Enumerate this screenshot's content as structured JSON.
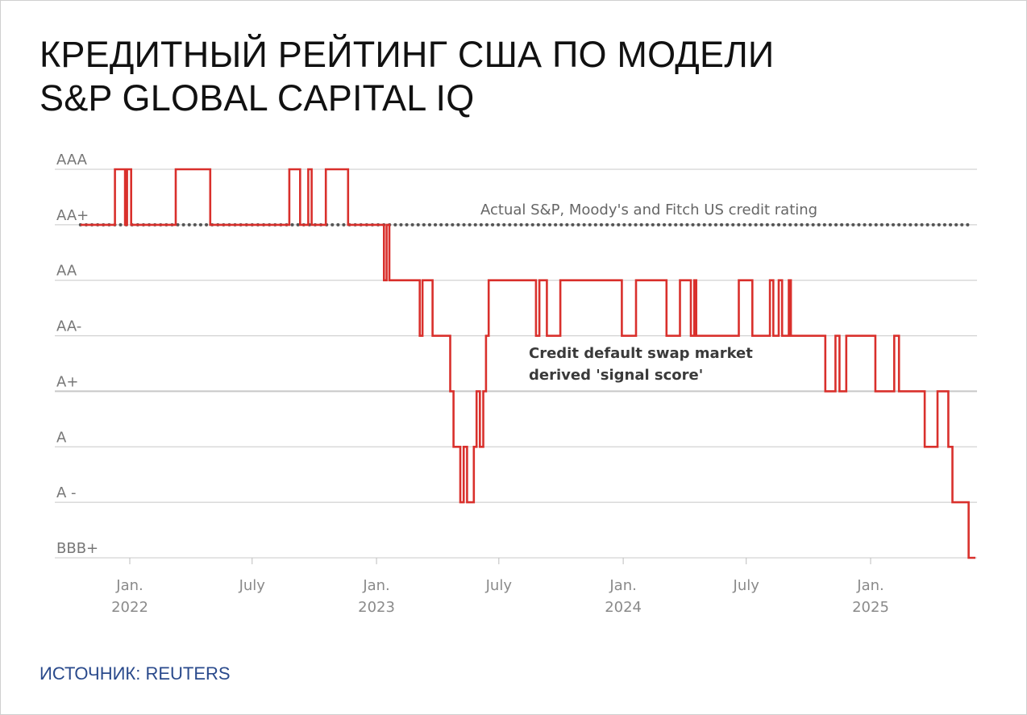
{
  "title": [
    "КРЕДИТНЫЙ РЕЙТИНГ США ПО МОДЕЛИ",
    "S&P GLOBAL CAPITAL IQ"
  ],
  "source": "ИСТОЧНИК: REUTERS",
  "colors": {
    "series": "#d9302c",
    "reference": "#555555",
    "grid": "#c8c8c8",
    "source": "#2a4a8c"
  },
  "chart_data": {
    "type": "line",
    "step": true,
    "y_categories": [
      "BBB+",
      "A -",
      "A",
      "A+",
      "AA-",
      "AA",
      "AA+",
      "AAA"
    ],
    "x_ticks": [
      {
        "date": "2022-01-01",
        "label": "Jan.",
        "sublabel": "2022"
      },
      {
        "date": "2022-07-01",
        "label": "July",
        "sublabel": ""
      },
      {
        "date": "2023-01-01",
        "label": "Jan.",
        "sublabel": "2023"
      },
      {
        "date": "2023-07-01",
        "label": "July",
        "sublabel": ""
      },
      {
        "date": "2024-01-01",
        "label": "Jan.",
        "sublabel": "2024"
      },
      {
        "date": "2024-07-01",
        "label": "July",
        "sublabel": ""
      },
      {
        "date": "2025-01-01",
        "label": "Jan.",
        "sublabel": "2025"
      }
    ],
    "xlim": [
      "2021-10-15",
      "2025-06-10"
    ],
    "grid": true,
    "reference": {
      "label": "Actual S&P, Moody's and Fitch US credit rating",
      "value": "AA+",
      "x": [
        "2021-10-20",
        "2025-06-01"
      ]
    },
    "series": [
      {
        "label": [
          "Credit default swap market",
          "derived 'signal score'"
        ],
        "points": [
          [
            "2021-10-20",
            "AA+"
          ],
          [
            "2021-12-10",
            "AAA"
          ],
          [
            "2021-12-25",
            "AA+"
          ],
          [
            "2021-12-28",
            "AAA"
          ],
          [
            "2022-01-03",
            "AA+"
          ],
          [
            "2022-03-10",
            "AAA"
          ],
          [
            "2022-04-30",
            "AA+"
          ],
          [
            "2022-08-25",
            "AAA"
          ],
          [
            "2022-09-10",
            "AA+"
          ],
          [
            "2022-09-22",
            "AAA"
          ],
          [
            "2022-09-27",
            "AA+"
          ],
          [
            "2022-10-18",
            "AAA"
          ],
          [
            "2022-11-20",
            "AA+"
          ],
          [
            "2023-01-12",
            "AA"
          ],
          [
            "2023-01-16",
            "AA+"
          ],
          [
            "2023-01-20",
            "AA"
          ],
          [
            "2023-03-06",
            "AA-"
          ],
          [
            "2023-03-10",
            "AA"
          ],
          [
            "2023-03-25",
            "AA-"
          ],
          [
            "2023-04-20",
            "A+"
          ],
          [
            "2023-04-25",
            "A"
          ],
          [
            "2023-05-05",
            "A -"
          ],
          [
            "2023-05-10",
            "A"
          ],
          [
            "2023-05-15",
            "A -"
          ],
          [
            "2023-05-25",
            "A"
          ],
          [
            "2023-05-29",
            "A+"
          ],
          [
            "2023-06-03",
            "A"
          ],
          [
            "2023-06-08",
            "A+"
          ],
          [
            "2023-06-12",
            "AA-"
          ],
          [
            "2023-06-16",
            "AA"
          ],
          [
            "2023-08-25",
            "AA-"
          ],
          [
            "2023-08-30",
            "AA"
          ],
          [
            "2023-09-10",
            "AA-"
          ],
          [
            "2023-09-30",
            "AA"
          ],
          [
            "2023-12-30",
            "AA-"
          ],
          [
            "2024-01-20",
            "AA"
          ],
          [
            "2024-03-05",
            "AA-"
          ],
          [
            "2024-03-25",
            "AA"
          ],
          [
            "2024-04-10",
            "AA-"
          ],
          [
            "2024-04-15",
            "AA"
          ],
          [
            "2024-04-18",
            "AA-"
          ],
          [
            "2024-06-20",
            "AA"
          ],
          [
            "2024-07-10",
            "AA-"
          ],
          [
            "2024-08-05",
            "AA"
          ],
          [
            "2024-08-10",
            "AA-"
          ],
          [
            "2024-08-18",
            "AA"
          ],
          [
            "2024-08-23",
            "AA-"
          ],
          [
            "2024-09-02",
            "AA"
          ],
          [
            "2024-09-05",
            "AA-"
          ],
          [
            "2024-10-26",
            "A+"
          ],
          [
            "2024-11-10",
            "AA-"
          ],
          [
            "2024-11-16",
            "A+"
          ],
          [
            "2024-11-26",
            "AA-"
          ],
          [
            "2025-01-08",
            "A+"
          ],
          [
            "2025-02-05",
            "AA-"
          ],
          [
            "2025-02-12",
            "A+"
          ],
          [
            "2025-03-22",
            "A"
          ],
          [
            "2025-04-10",
            "A+"
          ],
          [
            "2025-04-26",
            "A"
          ],
          [
            "2025-05-02",
            "A -"
          ],
          [
            "2025-05-26",
            "BBB+"
          ],
          [
            "2025-06-05",
            "BBB+"
          ]
        ]
      }
    ]
  }
}
